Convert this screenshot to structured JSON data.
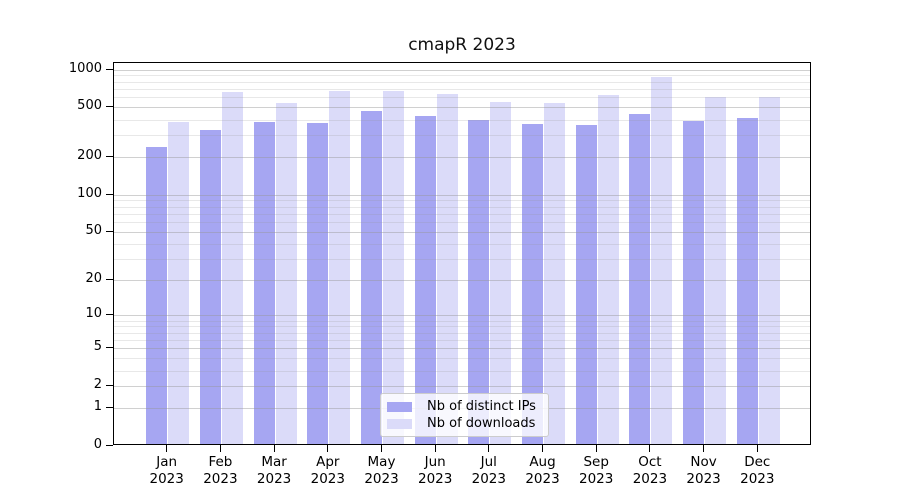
{
  "title": "cmapR 2023",
  "chart_data": {
    "type": "bar",
    "title": "cmapR 2023",
    "y_scale": "log1p",
    "grid": "horizontal, major and minor, drawn above bars",
    "legend_position": "lower center",
    "categories": [
      "Jan 2023",
      "Feb 2023",
      "Mar 2023",
      "Apr 2023",
      "May 2023",
      "Jun 2023",
      "Jul 2023",
      "Aug 2023",
      "Sep 2023",
      "Oct 2023",
      "Nov 2023",
      "Dec 2023"
    ],
    "series": [
      {
        "name": "Nb of distinct IPs",
        "color": "#a6a6f2",
        "values": [
          231,
          318,
          371,
          360,
          451,
          412,
          383,
          355,
          349,
          430,
          378,
          399
        ]
      },
      {
        "name": "Nb of downloads",
        "color": "#dbdbf9",
        "values": [
          370,
          644,
          523,
          648,
          656,
          621,
          530,
          526,
          606,
          848,
          587,
          584
        ]
      }
    ],
    "yticks": [
      0,
      1,
      2,
      5,
      10,
      20,
      50,
      100,
      200,
      500,
      1000
    ],
    "yticks_minor": [
      3,
      4,
      6,
      7,
      8,
      9,
      30,
      40,
      60,
      70,
      80,
      90,
      300,
      400,
      600,
      700,
      800,
      900
    ],
    "ylim": [
      0,
      1130
    ]
  },
  "colors": {
    "axis": "#000000",
    "grid_major": "rgba(150,150,150,0.45)",
    "grid_minor": "rgba(150,150,150,0.22)",
    "legend_border": "#cccccc"
  }
}
